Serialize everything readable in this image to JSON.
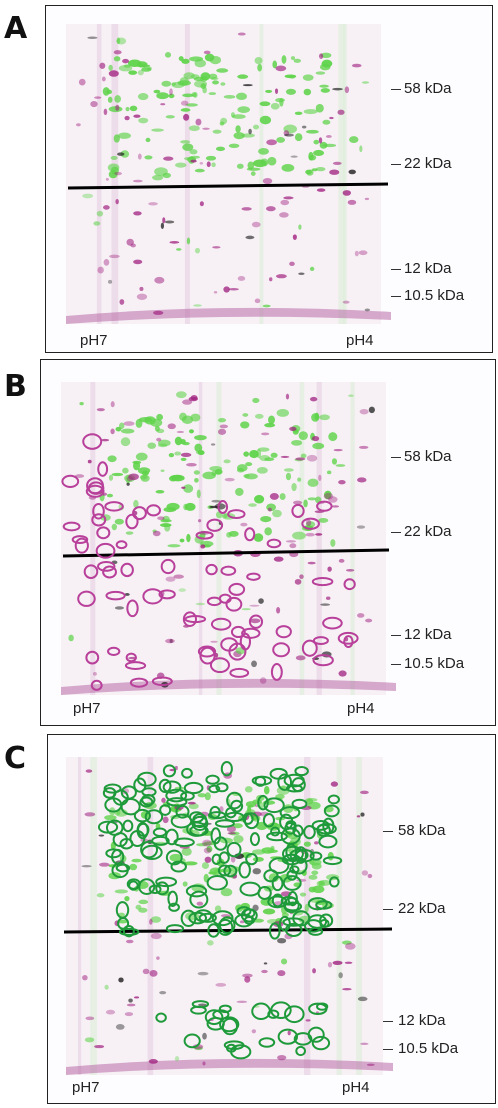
{
  "panels": [
    {
      "letter": "A",
      "markers": [
        "58 kDa",
        "22 kDa",
        "12 kDa",
        "10.5 kDa"
      ],
      "ph_left": "pH7",
      "ph_right": "pH4",
      "circle_color": "",
      "mode": "none"
    },
    {
      "letter": "B",
      "markers": [
        "58 kDa",
        "22 kDa",
        "12 kDa",
        "10.5 kDa"
      ],
      "ph_left": "pH7",
      "ph_right": "pH4",
      "circle_color": "#b8409a",
      "mode": "magenta"
    },
    {
      "letter": "C",
      "markers": [
        "58 kDa",
        "22 kDa",
        "12 kDa",
        "10.5 kDa"
      ],
      "ph_left": "pH7",
      "ph_right": "pH4",
      "circle_color": "#1f9a3a",
      "mode": "green"
    }
  ],
  "colors": {
    "green_spot": "#5fd34a",
    "magenta_spot": "#a0207f",
    "dark_spot": "#1a1a1a",
    "divider": "#000000"
  }
}
